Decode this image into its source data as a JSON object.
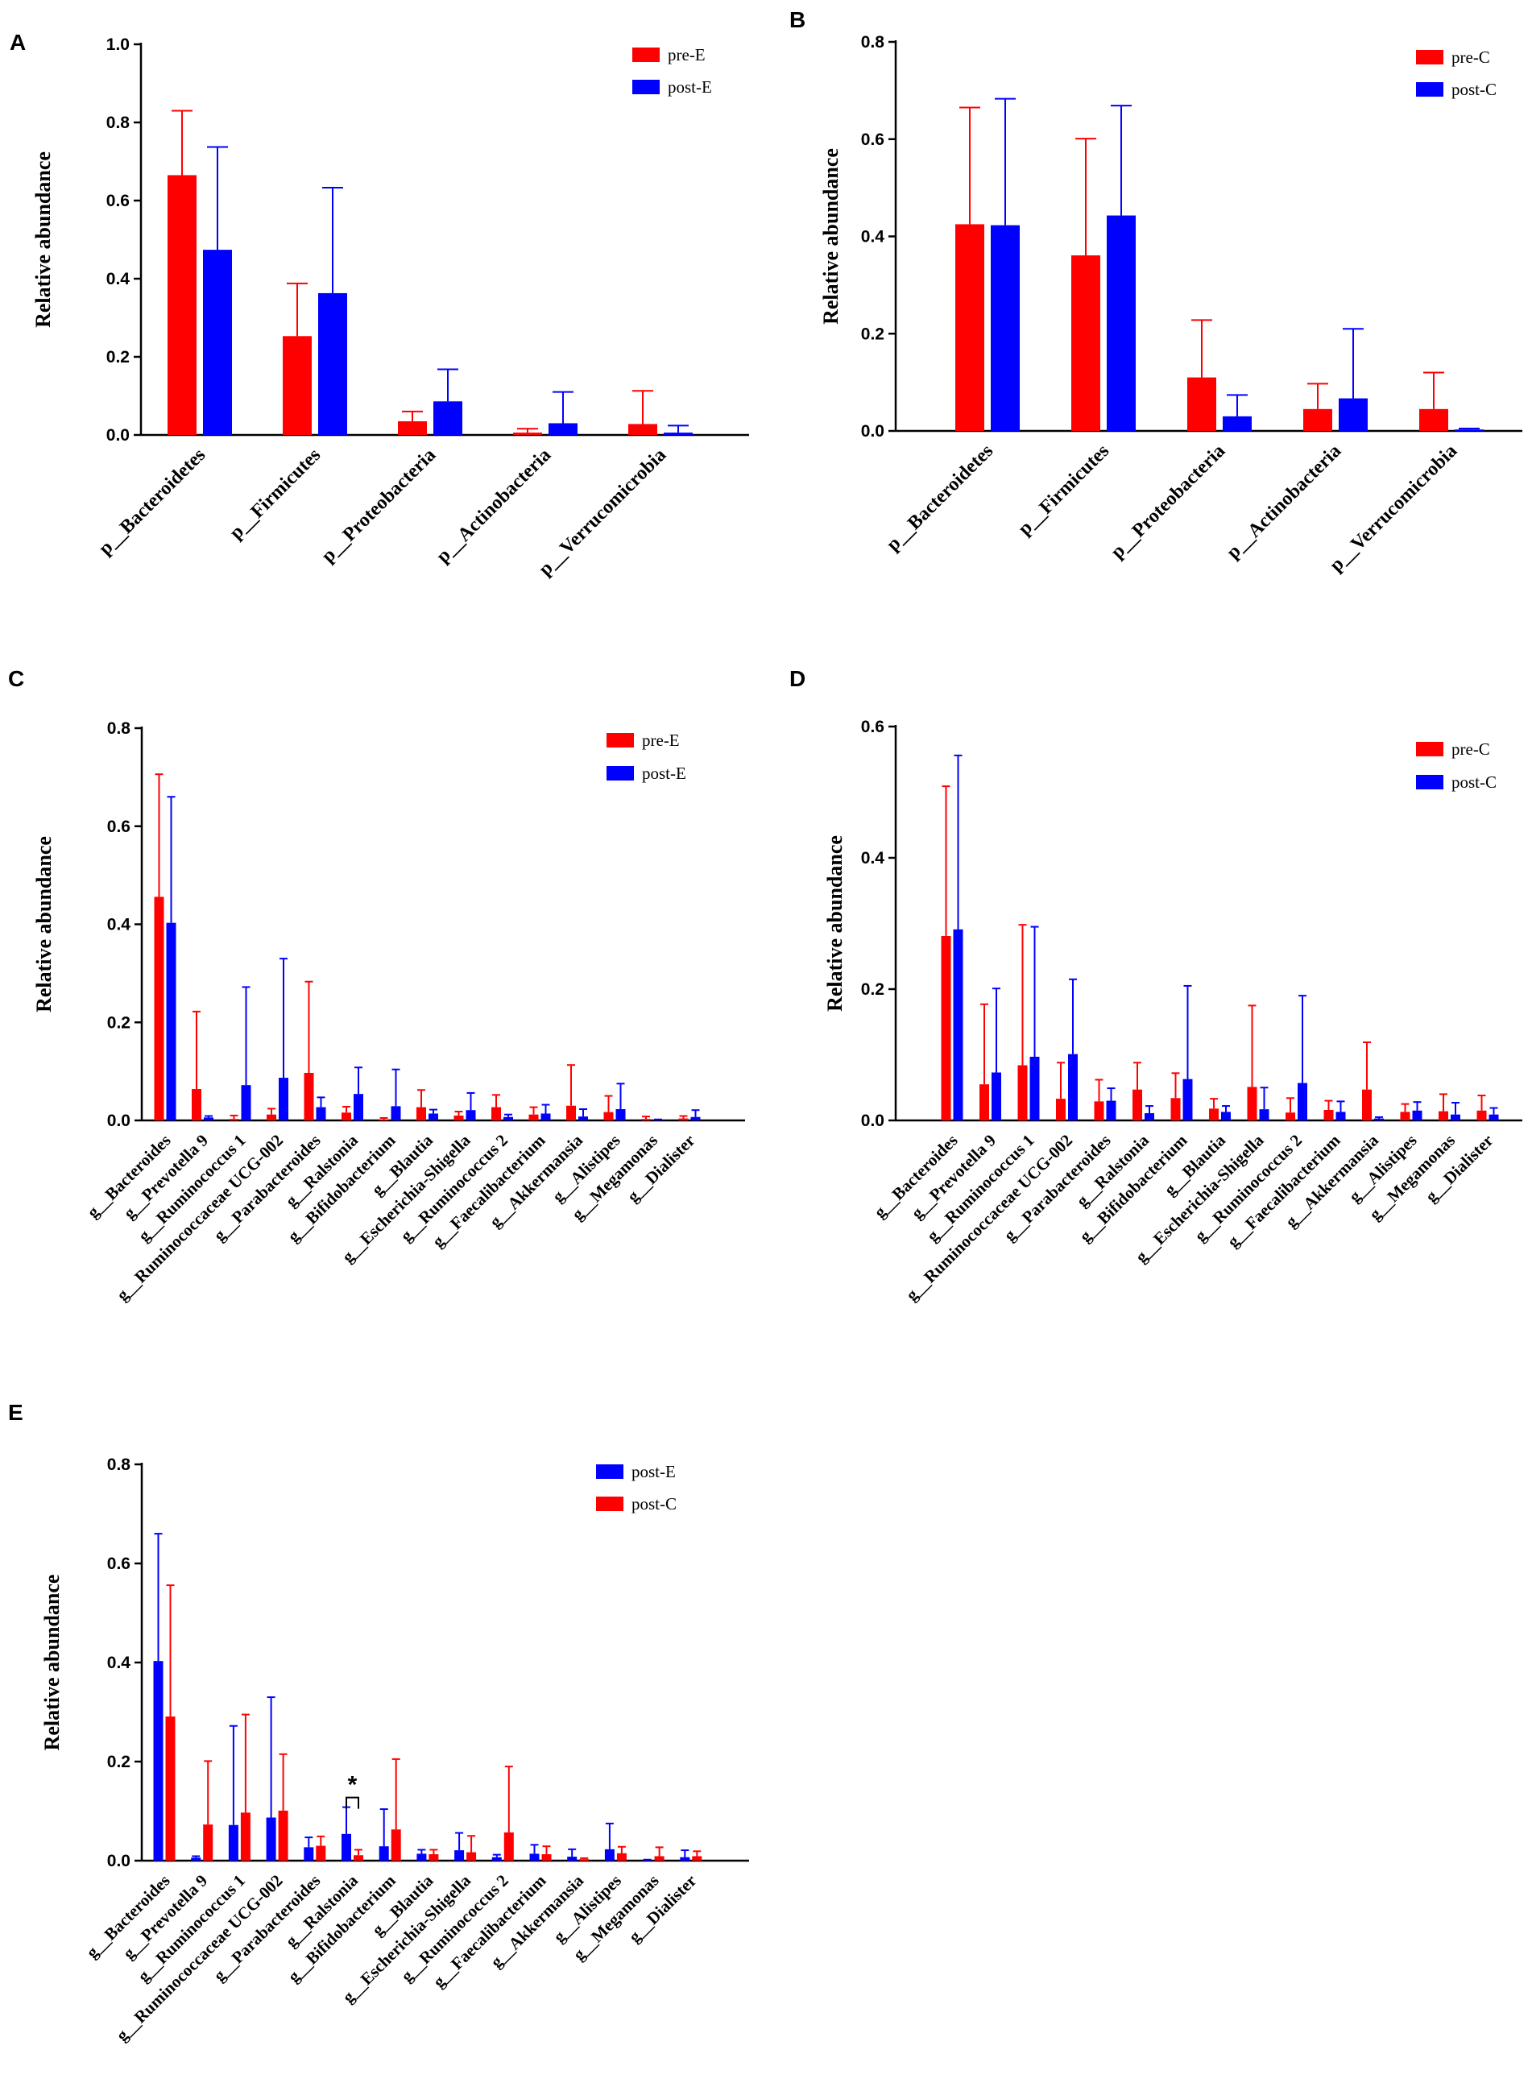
{
  "colors": {
    "red": "#ff0000",
    "blue": "#0000ff"
  },
  "chart_data": [
    {
      "panel": "A",
      "type": "bar",
      "ylabel": "Relative abundance",
      "ylim": [
        0,
        1.0
      ],
      "yticks": [
        "0.0",
        "0.2",
        "0.4",
        "0.6",
        "0.8",
        "1.0"
      ],
      "categories": [
        "p__Bacteroidetes",
        "p__Firmicutes",
        "p__Proteobacteria",
        "p__Actinobacteria",
        "p__Verrucomicrobia"
      ],
      "series": [
        {
          "name": "pre-E",
          "color": "#ff0000",
          "values": [
            0.665,
            0.253,
            0.035,
            0.006,
            0.028
          ],
          "errors": [
            0.165,
            0.135,
            0.025,
            0.01,
            0.085
          ]
        },
        {
          "name": "post-E",
          "color": "#0000ff",
          "values": [
            0.474,
            0.363,
            0.086,
            0.03,
            0.006
          ],
          "errors": [
            0.263,
            0.27,
            0.082,
            0.08,
            0.018
          ]
        }
      ],
      "legend": "top-right"
    },
    {
      "panel": "B",
      "type": "bar",
      "ylabel": "Relative abundance",
      "ylim": [
        0,
        0.8
      ],
      "yticks": [
        "0.0",
        "0.2",
        "0.4",
        "0.6",
        "0.8"
      ],
      "categories": [
        "p__Bacteroidetes",
        "p__Firmicutes",
        "p__Proteobacteria",
        "p__Actinobacteria",
        "p__Verrucomicrobia"
      ],
      "series": [
        {
          "name": "pre-C",
          "color": "#ff0000",
          "values": [
            0.425,
            0.361,
            0.11,
            0.045,
            0.045
          ],
          "errors": [
            0.24,
            0.24,
            0.118,
            0.052,
            0.075
          ]
        },
        {
          "name": "post-C",
          "color": "#0000ff",
          "values": [
            0.423,
            0.443,
            0.03,
            0.067,
            0.003
          ],
          "errors": [
            0.26,
            0.226,
            0.044,
            0.143,
            0.002
          ]
        }
      ],
      "legend": "top-right"
    },
    {
      "panel": "C",
      "type": "bar",
      "ylabel": "Relative abundance",
      "ylim": [
        0,
        0.8
      ],
      "yticks": [
        "0.0",
        "0.2",
        "0.4",
        "0.6",
        "0.8"
      ],
      "categories": [
        "g__Bacteroides",
        "g__Prevotella 9",
        "g__Ruminococcus 1",
        "g__Ruminococcaceae UCG-002",
        "g__Parabacteroides",
        "g__Ralstonia",
        "g__Bifidobacterium",
        "g__Blautia",
        "g__Escherichia-Shigella",
        "g__Ruminococcus 2",
        "g__Faecalibacterium",
        "g__Akkermansia",
        "g__Alistipes",
        "g__Megamonas",
        "g__Dialister"
      ],
      "series": [
        {
          "name": "pre-E",
          "color": "#ff0000",
          "values": [
            0.456,
            0.064,
            0.003,
            0.012,
            0.097,
            0.016,
            0.002,
            0.027,
            0.01,
            0.027,
            0.012,
            0.03,
            0.017,
            0.003,
            0.004
          ],
          "errors": [
            0.25,
            0.158,
            0.007,
            0.012,
            0.186,
            0.012,
            0.003,
            0.035,
            0.008,
            0.025,
            0.015,
            0.083,
            0.033,
            0.005,
            0.005
          ]
        },
        {
          "name": "post-E",
          "color": "#0000ff",
          "values": [
            0.403,
            0.006,
            0.072,
            0.087,
            0.027,
            0.054,
            0.029,
            0.014,
            0.021,
            0.007,
            0.014,
            0.008,
            0.023,
            0.001,
            0.007
          ],
          "errors": [
            0.257,
            0.003,
            0.2,
            0.243,
            0.02,
            0.054,
            0.075,
            0.008,
            0.035,
            0.005,
            0.018,
            0.015,
            0.052,
            0.001,
            0.014
          ]
        }
      ],
      "legend": "top-right"
    },
    {
      "panel": "D",
      "type": "bar",
      "ylabel": "Relative abundance",
      "ylim": [
        0,
        0.6
      ],
      "yticks": [
        "0.0",
        "0.2",
        "0.4",
        "0.6"
      ],
      "categories": [
        "g__Bacteroides",
        "g__Prevotella 9",
        "g__Ruminococcus 1",
        "g__Ruminococcaceae UCG-002",
        "g__Parabacteroides",
        "g__Ralstonia",
        "g__Bifidobacterium",
        "g__Blautia",
        "g__Escherichia-Shigella",
        "g__Ruminococcus 2",
        "g__Faecalibacterium",
        "g__Akkermansia",
        "g__Alistipes",
        "g__Megamonas",
        "g__Dialister"
      ],
      "series": [
        {
          "name": "pre-C",
          "color": "#ff0000",
          "values": [
            0.281,
            0.055,
            0.084,
            0.033,
            0.029,
            0.047,
            0.034,
            0.018,
            0.051,
            0.012,
            0.016,
            0.047,
            0.013,
            0.014,
            0.015
          ],
          "errors": [
            0.228,
            0.122,
            0.214,
            0.055,
            0.033,
            0.041,
            0.038,
            0.015,
            0.124,
            0.022,
            0.014,
            0.072,
            0.012,
            0.026,
            0.023
          ]
        },
        {
          "name": "post-C",
          "color": "#0000ff",
          "values": [
            0.291,
            0.073,
            0.097,
            0.101,
            0.03,
            0.011,
            0.063,
            0.013,
            0.017,
            0.057,
            0.013,
            0.003,
            0.015,
            0.009,
            0.009
          ],
          "errors": [
            0.265,
            0.128,
            0.198,
            0.114,
            0.019,
            0.011,
            0.142,
            0.009,
            0.033,
            0.133,
            0.016,
            0.002,
            0.013,
            0.018,
            0.01
          ]
        }
      ],
      "legend": "top-right"
    },
    {
      "panel": "E",
      "type": "bar",
      "ylabel": "Relative abundance",
      "ylim": [
        0,
        0.8
      ],
      "yticks": [
        "0.0",
        "0.2",
        "0.4",
        "0.6",
        "0.8"
      ],
      "categories": [
        "g__Bacteroides",
        "g__Prevotella 9",
        "g__Ruminococcus 1",
        "g__Ruminococcaceae UCG-002",
        "g__Parabacteroides",
        "g__Ralstonia",
        "g__Bifidobacterium",
        "g__Blautia",
        "g__Escherichia-Shigella",
        "g__Ruminococcus 2",
        "g__Faecalibacterium",
        "g__Akkermansia",
        "g__Alistipes",
        "g__Megamonas",
        "g__Dialister"
      ],
      "series": [
        {
          "name": "post-E",
          "color": "#0000ff",
          "values": [
            0.403,
            0.006,
            0.072,
            0.087,
            0.027,
            0.054,
            0.029,
            0.014,
            0.021,
            0.007,
            0.014,
            0.008,
            0.023,
            0.001,
            0.007
          ],
          "errors": [
            0.257,
            0.003,
            0.2,
            0.243,
            0.02,
            0.054,
            0.075,
            0.008,
            0.035,
            0.005,
            0.018,
            0.015,
            0.052,
            0.001,
            0.014
          ]
        },
        {
          "name": "post-C",
          "color": "#ff0000",
          "values": [
            0.291,
            0.073,
            0.097,
            0.101,
            0.03,
            0.011,
            0.063,
            0.013,
            0.017,
            0.057,
            0.013,
            0.003,
            0.015,
            0.009,
            0.009
          ],
          "errors": [
            0.265,
            0.128,
            0.198,
            0.114,
            0.019,
            0.011,
            0.142,
            0.009,
            0.033,
            0.133,
            0.016,
            0.002,
            0.013,
            0.018,
            0.01
          ]
        }
      ],
      "annotations": [
        {
          "text": "*",
          "category": "g__Ralstonia"
        }
      ],
      "legend": "top-right"
    }
  ]
}
